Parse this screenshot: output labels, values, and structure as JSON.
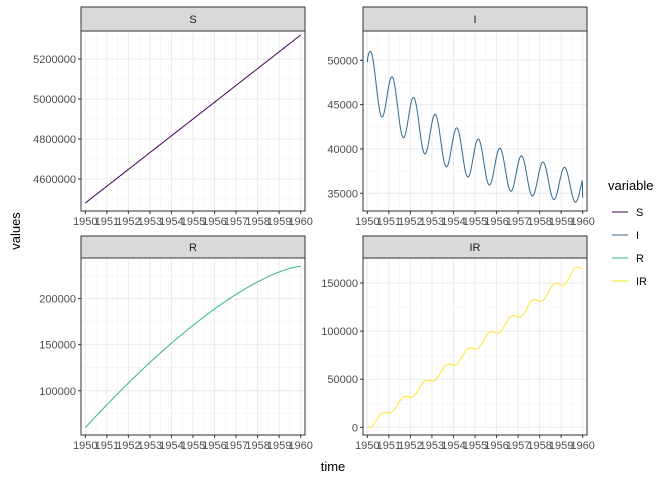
{
  "figure": {
    "xlabel": "time",
    "ylabel": "values",
    "legend": {
      "title": "variable",
      "position": "right",
      "items": [
        {
          "label": "S",
          "color": "#440154"
        },
        {
          "label": "I",
          "color": "#31688E"
        },
        {
          "label": "R",
          "color": "#35B779"
        },
        {
          "label": "IR",
          "color": "#FDE725"
        }
      ]
    }
  },
  "chart_data": [
    {
      "type": "line",
      "title": "S",
      "color": "#440154",
      "x_ticks": [
        "1950",
        "1951",
        "1952",
        "1953",
        "1954",
        "1955",
        "1956",
        "1957",
        "1958",
        "1959",
        "1960"
      ],
      "xlim": [
        1949.8,
        1960.2
      ],
      "ylim": [
        4440000,
        5340000
      ],
      "y_ticks": [
        4600000,
        4800000,
        5000000,
        5200000
      ],
      "y_tick_labels": [
        "4600000",
        "4800000",
        "5000000",
        "5200000"
      ],
      "grid": true,
      "series": [
        {
          "curve": "linear",
          "x": [
            1950,
            1960
          ],
          "y": [
            4480000,
            5320000
          ]
        }
      ]
    },
    {
      "type": "line",
      "title": "I",
      "color": "#31688E",
      "x_ticks": [
        "1950",
        "1951",
        "1952",
        "1953",
        "1954",
        "1955",
        "1956",
        "1957",
        "1958",
        "1959",
        "1960"
      ],
      "xlim": [
        1949.8,
        1960.2
      ],
      "ylim": [
        33000,
        53300
      ],
      "y_ticks": [
        35000,
        40000,
        45000,
        50000
      ],
      "y_tick_labels": [
        "35000",
        "40000",
        "45000",
        "50000"
      ],
      "grid": true,
      "series": [
        {
          "curve": "wave",
          "x_start": 1950,
          "x_end": 1960,
          "y_start": 49800,
          "y_peak": 52100,
          "y_trough_first": 46000,
          "y_end": 34500,
          "trend_start": 48500,
          "trend_end": 35700,
          "amplitude_start": 3000,
          "amplitude_end": 1800,
          "period": 1.0
        }
      ]
    },
    {
      "type": "line",
      "title": "R",
      "color": "#35B779",
      "x_ticks": [
        "1950",
        "1951",
        "1952",
        "1953",
        "1954",
        "1955",
        "1956",
        "1957",
        "1958",
        "1959",
        "1960"
      ],
      "xlim": [
        1949.8,
        1960.2
      ],
      "ylim": [
        52000,
        244000
      ],
      "y_ticks": [
        100000,
        150000,
        200000
      ],
      "y_tick_labels": [
        "100000",
        "150000",
        "200000"
      ],
      "grid": true,
      "series": [
        {
          "curve": "concave",
          "x": [
            1950,
            1960
          ],
          "y": [
            60000,
            235000
          ]
        }
      ]
    },
    {
      "type": "line",
      "title": "IR",
      "color": "#FDE725",
      "x_ticks": [
        "1950",
        "1951",
        "1952",
        "1953",
        "1954",
        "1955",
        "1956",
        "1957",
        "1958",
        "1959",
        "1960"
      ],
      "xlim": [
        1949.8,
        1960.2
      ],
      "ylim": [
        -8000,
        176000
      ],
      "y_ticks": [
        0,
        50000,
        100000,
        150000
      ],
      "y_tick_labels": [
        "0",
        "50000",
        "100000",
        "150000"
      ],
      "grid": true,
      "series": [
        {
          "curve": "stepped",
          "x": [
            1950,
            1960
          ],
          "y": [
            0,
            167000
          ]
        }
      ]
    }
  ]
}
